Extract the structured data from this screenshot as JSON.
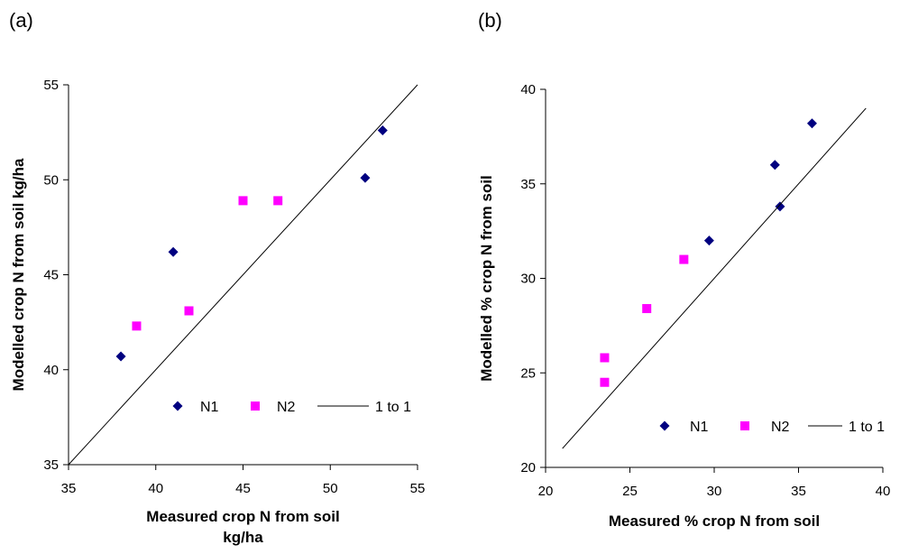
{
  "chart_data": [
    {
      "type": "scatter",
      "panel_label": "(a)",
      "title": "",
      "xlabel_lines": [
        "Measured crop N from soil",
        "kg/ha"
      ],
      "ylabel": "Modelled crop N from soil kg/ha",
      "xlim": [
        35,
        55
      ],
      "ylim": [
        35,
        55
      ],
      "xticks": [
        "35",
        "40",
        "45",
        "50",
        "55"
      ],
      "yticks": [
        "35",
        "40",
        "45",
        "50",
        "55"
      ],
      "grid": false,
      "legend_position": "lower-right",
      "legend": [
        {
          "label": "N1",
          "marker": "diamond"
        },
        {
          "label": "N2",
          "marker": "square"
        },
        {
          "label": "1 to 1",
          "marker": "line"
        }
      ],
      "series": [
        {
          "name": "N1",
          "color": "#000080",
          "marker": "diamond",
          "points": [
            [
              38,
              40.7
            ],
            [
              41,
              46.2
            ],
            [
              52,
              50.1
            ],
            [
              53,
              52.6
            ]
          ]
        },
        {
          "name": "N2",
          "color": "#FF00FF",
          "marker": "square",
          "points": [
            [
              38.9,
              42.3
            ],
            [
              41.9,
              43.1
            ],
            [
              45,
              48.9
            ],
            [
              47,
              48.9
            ]
          ]
        },
        {
          "name": "1 to 1",
          "color": "#000000",
          "marker": "line",
          "points": [
            [
              35,
              35
            ],
            [
              55,
              55
            ]
          ]
        }
      ]
    },
    {
      "type": "scatter",
      "panel_label": "(b)",
      "title": "",
      "xlabel_lines": [
        "Measured % crop N from soil"
      ],
      "ylabel": "Modelled % crop N from soil",
      "xlim": [
        20,
        40
      ],
      "ylim": [
        20,
        40
      ],
      "xticks": [
        "20",
        "25",
        "30",
        "35",
        "40"
      ],
      "yticks": [
        "20",
        "25",
        "30",
        "35",
        "40"
      ],
      "grid": false,
      "legend_position": "lower-right",
      "legend": [
        {
          "label": "N1",
          "marker": "diamond"
        },
        {
          "label": "N2",
          "marker": "square"
        },
        {
          "label": "1 to 1",
          "marker": "line"
        }
      ],
      "series": [
        {
          "name": "N1",
          "color": "#000080",
          "marker": "diamond",
          "points": [
            [
              29.7,
              32
            ],
            [
              33.6,
              36
            ],
            [
              33.9,
              33.8
            ],
            [
              35.8,
              38.2
            ]
          ]
        },
        {
          "name": "N2",
          "color": "#FF00FF",
          "marker": "square",
          "points": [
            [
              23.5,
              25.8
            ],
            [
              23.5,
              24.5
            ],
            [
              26,
              28.4
            ],
            [
              28.2,
              31
            ]
          ]
        },
        {
          "name": "1 to 1",
          "color": "#000000",
          "marker": "line",
          "points": [
            [
              21,
              21
            ],
            [
              39,
              39
            ]
          ]
        }
      ]
    }
  ]
}
